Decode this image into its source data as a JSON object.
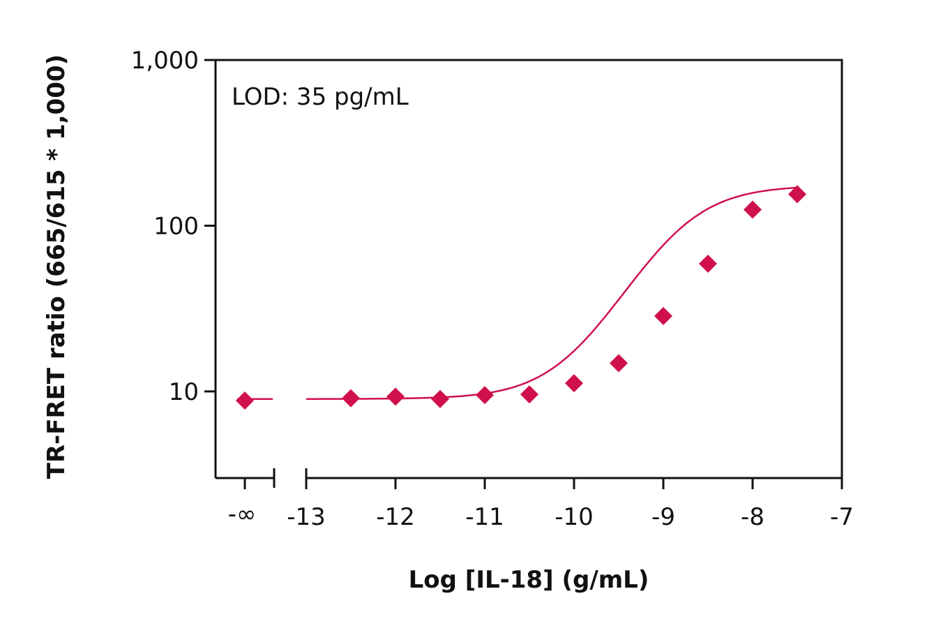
{
  "chart_data": {
    "type": "scatter",
    "title": "",
    "xlabel": "Log [IL-18] (g/mL)",
    "ylabel": "TR-FRET ratio (665/615 * 1,000)",
    "y_scale": "log",
    "ylim": [
      3,
      1000
    ],
    "xlim": [
      -13,
      -7
    ],
    "x_ticks": [
      "-13",
      "-12",
      "-11",
      "-10",
      "-9",
      "-8",
      "-7"
    ],
    "x_tick_values": [
      -13,
      -12,
      -11,
      -10,
      -9,
      -8,
      -7
    ],
    "x_break_label": "-∞",
    "y_ticks": [
      "10",
      "100",
      "1,000"
    ],
    "y_tick_values": [
      10,
      100,
      1000
    ],
    "annotation": "LOD: 35 pg/mL",
    "marker_color": "#d0104a",
    "marker": "diamond",
    "grid": false,
    "legend": "none",
    "blank_point": {
      "x_label": "-∞",
      "y": 8.8
    },
    "series": [
      {
        "x": [
          -12.5,
          -12,
          -11.5,
          -11,
          -10.5,
          -10,
          -9.5,
          -9,
          -8.5,
          -8,
          -7.5
        ],
        "y": [
          9.1,
          9.3,
          9.0,
          9.5,
          9.6,
          11.2,
          14.8,
          28.5,
          59,
          125,
          155
        ]
      }
    ],
    "fit": {
      "bottom": 9.0,
      "top": 175,
      "logEC50": -8.85,
      "hill": 1.1
    }
  }
}
